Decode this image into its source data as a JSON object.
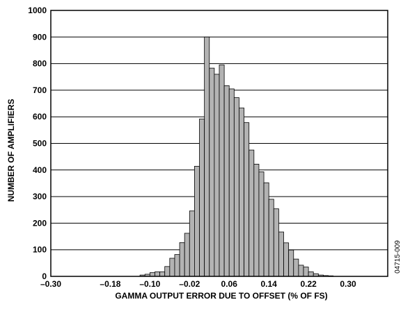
{
  "chart_data": {
    "type": "bar",
    "title": "",
    "xlabel": "GAMMA OUTPUT ERROR DUE TO OFFSET (% OF FS)",
    "ylabel": "NUMBER OF AMPLIFIERS",
    "figure_id": "04715-009",
    "xlim": [
      -0.3,
      0.38
    ],
    "ylim": [
      0,
      1000
    ],
    "grid": "horizontal",
    "x_tick_values": [
      -0.3,
      -0.18,
      -0.1,
      -0.02,
      0.06,
      0.14,
      0.22,
      0.3
    ],
    "x_tick_labels": [
      "–0.30",
      "–0.18",
      "–0.10",
      "–0.02",
      "0.06",
      "0.14",
      "0.22",
      "0.30"
    ],
    "y_tick_values": [
      0,
      100,
      200,
      300,
      400,
      500,
      600,
      700,
      800,
      900,
      1000
    ],
    "y_tick_labels": [
      "0",
      "100",
      "200",
      "300",
      "400",
      "500",
      "600",
      "700",
      "800",
      "900",
      "1000"
    ],
    "bin_width": 0.01,
    "bin_starts": [
      -0.12,
      -0.11,
      -0.1,
      -0.09,
      -0.08,
      -0.07,
      -0.06,
      -0.05,
      -0.04,
      -0.03,
      -0.02,
      -0.01,
      0.0,
      0.01,
      0.02,
      0.03,
      0.04,
      0.05,
      0.06,
      0.07,
      0.08,
      0.09,
      0.1,
      0.11,
      0.12,
      0.13,
      0.14,
      0.15,
      0.16,
      0.17,
      0.18,
      0.19,
      0.2,
      0.21,
      0.22,
      0.23,
      0.24,
      0.25,
      0.26
    ],
    "values": [
      5,
      8,
      14,
      17,
      17,
      37,
      68,
      82,
      127,
      162,
      246,
      414,
      592,
      900,
      783,
      760,
      795,
      717,
      705,
      672,
      633,
      578,
      475,
      422,
      393,
      352,
      290,
      254,
      167,
      126,
      99,
      65,
      42,
      35,
      17,
      10,
      5,
      3,
      2
    ]
  }
}
